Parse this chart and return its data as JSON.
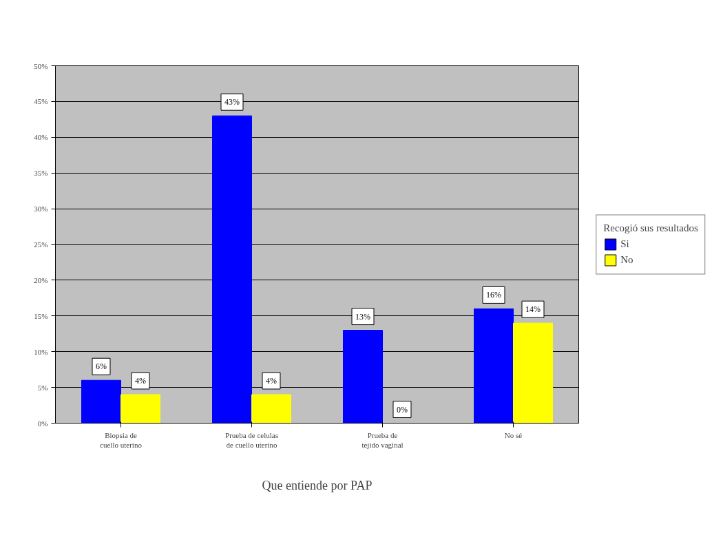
{
  "chart_data": {
    "type": "bar",
    "xlabel": "Que entiende por PAP",
    "legend_title": "Recogió sus resultados",
    "categories": [
      "Biopsia de cuello uterino",
      "Prueba de celulas de cuello uterino",
      "Prueba de tejido vaginal",
      "No sé"
    ],
    "series": [
      {
        "name": "Si",
        "color": "#0000ff",
        "values": [
          6,
          43,
          13,
          16
        ],
        "value_labels": [
          "6%",
          "43%",
          "13%",
          "16%"
        ]
      },
      {
        "name": "No",
        "color": "#ffff00",
        "values": [
          4,
          4,
          0,
          14
        ],
        "value_labels": [
          "4%",
          "4%",
          "0%",
          "14%"
        ]
      }
    ],
    "ylim": [
      0,
      50
    ],
    "yticks": [
      {
        "value": 0,
        "label": "0%"
      },
      {
        "value": 5,
        "label": "5%"
      },
      {
        "value": 10,
        "label": "10%"
      },
      {
        "value": 15,
        "label": "15%"
      },
      {
        "value": 20,
        "label": "20%"
      },
      {
        "value": 25,
        "label": "25%"
      },
      {
        "value": 30,
        "label": "30%"
      },
      {
        "value": 35,
        "label": "35%"
      },
      {
        "value": 40,
        "label": "40%"
      },
      {
        "value": 45,
        "label": "45%"
      },
      {
        "value": 50,
        "label": "50%"
      }
    ],
    "grid": "y",
    "legend": "right"
  }
}
